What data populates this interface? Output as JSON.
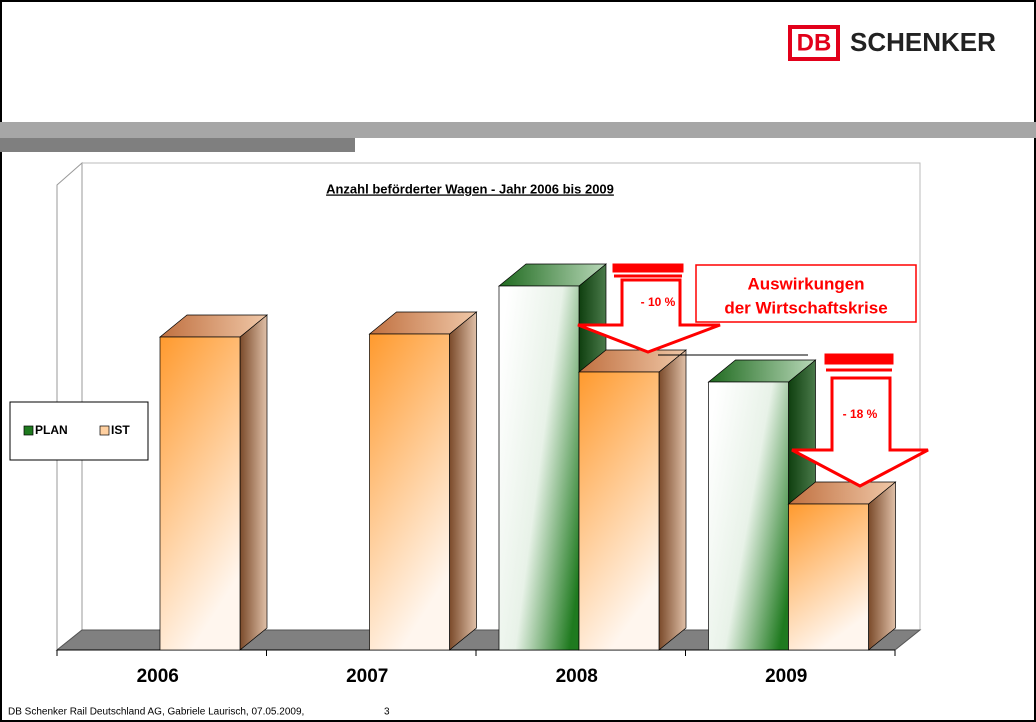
{
  "header": {
    "logo_mark": "DB",
    "logo_text": "SCHENKER"
  },
  "chart_data": {
    "type": "bar3d",
    "title": "Anzahl beförderter Wagen - Jahr 2006 bis 2009",
    "categories": [
      "2006",
      "2007",
      "2008",
      "2009"
    ],
    "series": [
      {
        "name": "PLAN",
        "color": "#1f7a1f",
        "values": [
          null,
          null,
          364,
          268
        ]
      },
      {
        "name": "IST",
        "color": "#ff9933",
        "values": [
          313,
          316,
          278,
          146
        ]
      }
    ],
    "ylim": [
      0,
      400
    ],
    "annotations": [
      "- 10 %",
      "- 18 %"
    ],
    "callout": [
      "Auswirkungen",
      "der Wirtschaftskrise"
    ]
  },
  "footer": {
    "text": "DB Schenker Rail Deutschland AG, Gabriele Laurisch, 07.05.2009,",
    "page": "3"
  }
}
